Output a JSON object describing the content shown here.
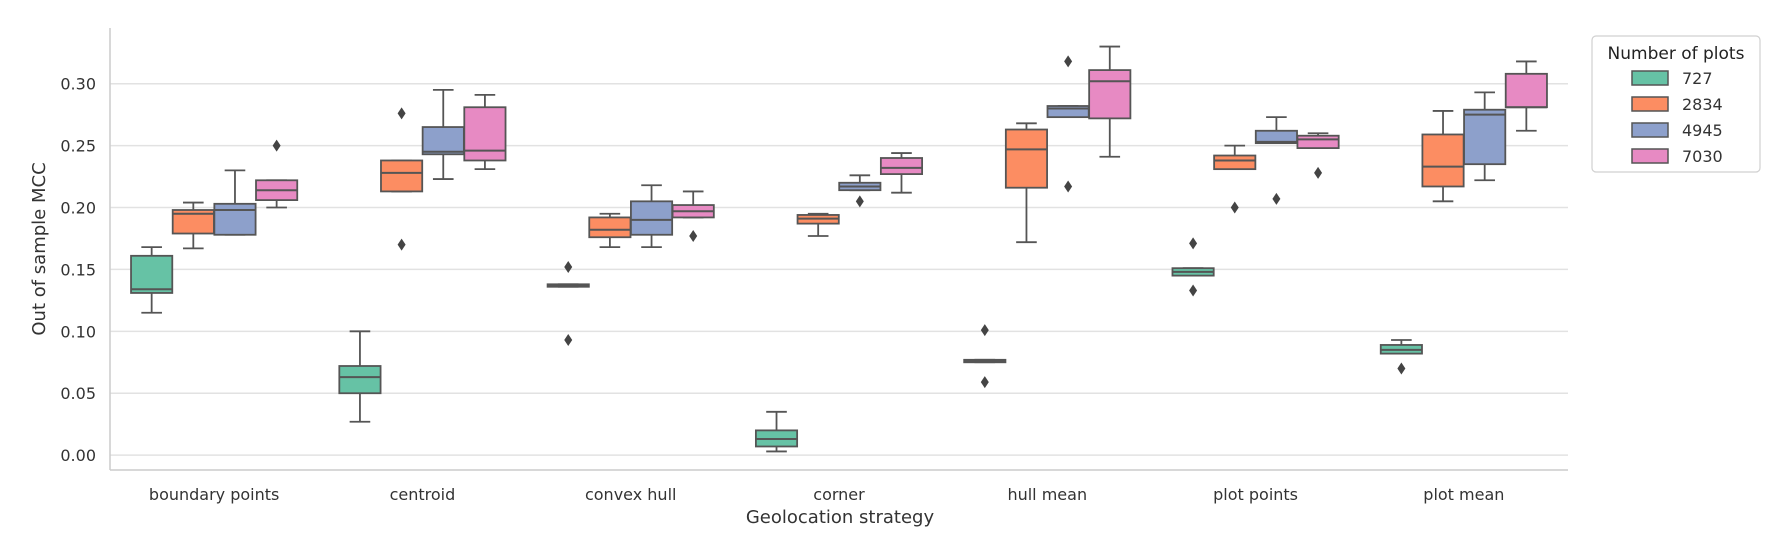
{
  "chart_data": {
    "type": "boxplot",
    "title": "",
    "xlabel": "Geolocation strategy",
    "ylabel": "Out of sample MCC",
    "ylim": [
      -0.012,
      0.345
    ],
    "yticks": [
      0.0,
      0.05,
      0.1,
      0.15,
      0.2,
      0.25,
      0.3
    ],
    "ytick_labels": [
      "0.00",
      "0.05",
      "0.10",
      "0.15",
      "0.20",
      "0.25",
      "0.30"
    ],
    "grid": "horizontal",
    "legend_position": "outside-top-right",
    "categories": [
      "boundary points",
      "centroid",
      "convex hull",
      "corner",
      "hull mean",
      "plot points",
      "plot mean"
    ],
    "legend": {
      "title": "Number of plots",
      "entries": [
        "727",
        "2834",
        "4945",
        "7030"
      ]
    },
    "series": [
      {
        "name": "727",
        "color": "#66c2a5",
        "boxes": [
          {
            "q1": 0.131,
            "median": 0.134,
            "q3": 0.161,
            "whislo": 0.115,
            "whishi": 0.168,
            "fliers": []
          },
          {
            "q1": 0.05,
            "median": 0.063,
            "q3": 0.072,
            "whislo": 0.027,
            "whishi": 0.1,
            "fliers": []
          },
          {
            "q1": 0.136,
            "median": 0.137,
            "q3": 0.138,
            "whislo": 0.136,
            "whishi": 0.138,
            "fliers": [
              0.152,
              0.093
            ]
          },
          {
            "q1": 0.007,
            "median": 0.013,
            "q3": 0.02,
            "whislo": 0.003,
            "whishi": 0.035,
            "fliers": []
          },
          {
            "q1": 0.075,
            "median": 0.076,
            "q3": 0.077,
            "whislo": 0.075,
            "whishi": 0.077,
            "fliers": [
              0.101,
              0.059
            ]
          },
          {
            "q1": 0.145,
            "median": 0.148,
            "q3": 0.151,
            "whislo": 0.145,
            "whishi": 0.151,
            "fliers": [
              0.171,
              0.133
            ]
          },
          {
            "q1": 0.082,
            "median": 0.085,
            "q3": 0.089,
            "whislo": 0.082,
            "whishi": 0.093,
            "fliers": [
              0.07
            ]
          }
        ]
      },
      {
        "name": "2834",
        "color": "#fc8d62",
        "boxes": [
          {
            "q1": 0.179,
            "median": 0.195,
            "q3": 0.198,
            "whislo": 0.167,
            "whishi": 0.204,
            "fliers": []
          },
          {
            "q1": 0.213,
            "median": 0.228,
            "q3": 0.238,
            "whislo": 0.213,
            "whishi": 0.238,
            "fliers": [
              0.276,
              0.17
            ]
          },
          {
            "q1": 0.176,
            "median": 0.182,
            "q3": 0.192,
            "whislo": 0.168,
            "whishi": 0.195,
            "fliers": []
          },
          {
            "q1": 0.187,
            "median": 0.191,
            "q3": 0.194,
            "whislo": 0.177,
            "whishi": 0.195,
            "fliers": []
          },
          {
            "q1": 0.216,
            "median": 0.247,
            "q3": 0.263,
            "whislo": 0.172,
            "whishi": 0.268,
            "fliers": []
          },
          {
            "q1": 0.231,
            "median": 0.238,
            "q3": 0.242,
            "whislo": 0.231,
            "whishi": 0.25,
            "fliers": [
              0.2
            ]
          },
          {
            "q1": 0.217,
            "median": 0.233,
            "q3": 0.259,
            "whislo": 0.205,
            "whishi": 0.278,
            "fliers": []
          }
        ]
      },
      {
        "name": "4945",
        "color": "#8da0cb",
        "boxes": [
          {
            "q1": 0.178,
            "median": 0.198,
            "q3": 0.203,
            "whislo": 0.178,
            "whishi": 0.23,
            "fliers": []
          },
          {
            "q1": 0.243,
            "median": 0.245,
            "q3": 0.265,
            "whislo": 0.223,
            "whishi": 0.295,
            "fliers": []
          },
          {
            "q1": 0.178,
            "median": 0.19,
            "q3": 0.205,
            "whislo": 0.168,
            "whishi": 0.218,
            "fliers": []
          },
          {
            "q1": 0.214,
            "median": 0.217,
            "q3": 0.22,
            "whislo": 0.214,
            "whishi": 0.226,
            "fliers": [
              0.205
            ]
          },
          {
            "q1": 0.273,
            "median": 0.28,
            "q3": 0.282,
            "whislo": 0.273,
            "whishi": 0.282,
            "fliers": [
              0.318,
              0.217
            ]
          },
          {
            "q1": 0.252,
            "median": 0.253,
            "q3": 0.262,
            "whislo": 0.252,
            "whishi": 0.273,
            "fliers": [
              0.207
            ]
          },
          {
            "q1": 0.235,
            "median": 0.275,
            "q3": 0.279,
            "whislo": 0.222,
            "whishi": 0.293,
            "fliers": []
          }
        ]
      },
      {
        "name": "7030",
        "color": "#e78ac3",
        "boxes": [
          {
            "q1": 0.206,
            "median": 0.214,
            "q3": 0.222,
            "whislo": 0.2,
            "whishi": 0.222,
            "fliers": [
              0.25
            ]
          },
          {
            "q1": 0.238,
            "median": 0.246,
            "q3": 0.281,
            "whislo": 0.231,
            "whishi": 0.291,
            "fliers": []
          },
          {
            "q1": 0.192,
            "median": 0.197,
            "q3": 0.202,
            "whislo": 0.192,
            "whishi": 0.213,
            "fliers": [
              0.177
            ]
          },
          {
            "q1": 0.227,
            "median": 0.232,
            "q3": 0.24,
            "whislo": 0.212,
            "whishi": 0.244,
            "fliers": []
          },
          {
            "q1": 0.272,
            "median": 0.302,
            "q3": 0.311,
            "whislo": 0.241,
            "whishi": 0.33,
            "fliers": []
          },
          {
            "q1": 0.248,
            "median": 0.255,
            "q3": 0.258,
            "whislo": 0.248,
            "whishi": 0.26,
            "fliers": [
              0.228
            ]
          },
          {
            "q1": 0.281,
            "median": 0.281,
            "q3": 0.308,
            "whislo": 0.262,
            "whishi": 0.318,
            "fliers": []
          }
        ]
      }
    ]
  }
}
